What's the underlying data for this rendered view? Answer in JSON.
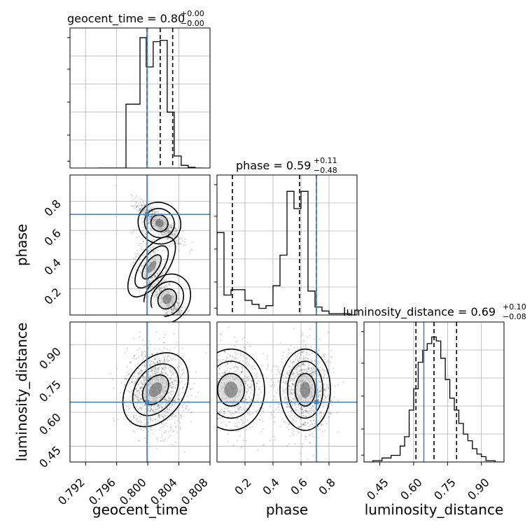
{
  "colors": {
    "truth": "#4682b4",
    "line": "#000000",
    "grid": "#b0b0b0",
    "scatter": "#666666"
  },
  "chart_data": {
    "type": "corner",
    "parameters": [
      "geocent_time",
      "phase",
      "luminosity_distance"
    ],
    "grid": true,
    "panels": [
      {
        "id": "hist-geocent_time",
        "type": "histogram",
        "param": "geocent_time",
        "title": {
          "text": "geocent_time = 0.80",
          "sup": "+0.00",
          "sub": "−0.00"
        },
        "xlim": [
          0.79,
          0.808
        ],
        "bins": [
          0.7936,
          0.7954,
          0.7972,
          0.799,
          0.7998,
          0.8007,
          0.8016,
          0.8025,
          0.8034,
          0.8043,
          0.8052,
          0.8061,
          0.807
        ],
        "values": [
          0,
          0,
          0.48,
          0.98,
          0.76,
          0.95,
          0.96,
          0.42,
          0.09,
          0.02,
          0.005,
          0
        ],
        "ymax": 1.0,
        "quantiles": [
          0.7999,
          0.8016,
          0.8032
        ],
        "truth": 0.7999
      },
      {
        "id": "scatter-geocent_time-phase",
        "type": "2d",
        "x": "geocent_time",
        "y": "phase",
        "xlim": [
          0.79,
          0.808
        ],
        "ylim": [
          0.02,
          0.98
        ],
        "truth": [
          0.7999,
          0.71
        ],
        "clusters": [
          {
            "cx": 0.8015,
            "cy": 0.65,
            "sx": 0.0014,
            "sy": 0.07,
            "rho": -0.85,
            "n": 650
          },
          {
            "cx": 0.8005,
            "cy": 0.35,
            "sx": 0.001,
            "sy": 0.12,
            "rho": -0.4,
            "n": 300
          },
          {
            "cx": 0.8025,
            "cy": 0.13,
            "sx": 0.0014,
            "sy": 0.09,
            "rho": -0.85,
            "n": 500
          }
        ],
        "xticks": [
          0.792,
          0.796,
          0.8,
          0.804,
          0.808
        ],
        "yticks": [
          0.2,
          0.4,
          0.6,
          0.8
        ]
      },
      {
        "id": "hist-phase",
        "type": "histogram",
        "param": "phase",
        "title": {
          "text": "phase = 0.59",
          "sup": "+0.11",
          "sub": "−0.48"
        },
        "xlim": [
          0.0,
          1.0
        ],
        "bins": [
          0.0,
          0.05,
          0.1,
          0.15,
          0.2,
          0.25,
          0.3,
          0.35,
          0.4,
          0.45,
          0.5,
          0.55,
          0.6,
          0.65,
          0.7,
          0.75,
          0.8,
          0.85,
          0.9,
          0.95,
          1.0
        ],
        "values": [
          0.62,
          0.15,
          0.19,
          0.19,
          0.11,
          0.08,
          0.05,
          0.07,
          0.22,
          0.45,
          0.93,
          0.8,
          0.93,
          0.18,
          0.06,
          0.03,
          0.01,
          0.01,
          0.01,
          0.0
        ],
        "ymax": 1.0,
        "quantiles": [
          0.11,
          0.59,
          0.71
        ],
        "truth": 0.71
      },
      {
        "id": "scatter-geocent_time-luminosity_distance",
        "type": "2d",
        "x": "geocent_time",
        "y": "luminosity_distance",
        "xlim": [
          0.79,
          0.808
        ],
        "ylim": [
          0.38,
          1.0
        ],
        "truth": [
          0.7999,
          0.645
        ],
        "clusters": [
          {
            "cx": 0.801,
            "cy": 0.7,
            "sx": 0.0018,
            "sy": 0.09,
            "rho": -0.1,
            "n": 1300
          }
        ],
        "xticks": [
          0.792,
          0.796,
          0.8,
          0.804,
          0.808
        ],
        "yticks": [
          0.45,
          0.6,
          0.75,
          0.9
        ]
      },
      {
        "id": "scatter-phase-luminosity_distance",
        "type": "2d",
        "x": "phase",
        "y": "luminosity_distance",
        "xlim": [
          0.0,
          1.0
        ],
        "ylim": [
          0.38,
          1.0
        ],
        "truth": [
          0.71,
          0.645
        ],
        "clusters": [
          {
            "cx": 0.63,
            "cy": 0.7,
            "sx": 0.09,
            "sy": 0.09,
            "rho": 0.0,
            "n": 1100
          },
          {
            "cx": 0.1,
            "cy": 0.7,
            "sx": 0.12,
            "sy": 0.09,
            "rho": 0.0,
            "n": 700
          }
        ],
        "xticks": [
          0.2,
          0.4,
          0.6,
          0.8
        ],
        "yticks": []
      },
      {
        "id": "hist-luminosity_distance",
        "type": "histogram",
        "param": "luminosity_distance",
        "title": {
          "text": "luminosity_distance = 0.69",
          "sup": "+0.10",
          "sub": "−0.08"
        },
        "xlim": [
          0.38,
          1.0
        ],
        "bins": [
          0.38,
          0.42,
          0.46,
          0.5,
          0.54,
          0.56,
          0.58,
          0.6,
          0.62,
          0.64,
          0.66,
          0.68,
          0.7,
          0.72,
          0.74,
          0.76,
          0.78,
          0.8,
          0.82,
          0.84,
          0.86,
          0.88,
          0.9,
          0.92,
          0.94,
          0.96,
          1.0
        ],
        "values": [
          0.0,
          0.01,
          0.03,
          0.05,
          0.12,
          0.19,
          0.39,
          0.55,
          0.75,
          0.84,
          0.89,
          0.94,
          0.91,
          0.78,
          0.62,
          0.48,
          0.39,
          0.29,
          0.21,
          0.16,
          0.1,
          0.06,
          0.04,
          0.01,
          0.01,
          0.0
        ],
        "ymax": 1.0,
        "quantiles": [
          0.61,
          0.69,
          0.79
        ],
        "truth": 0.645,
        "xticks": [
          0.45,
          0.6,
          0.75,
          0.9
        ]
      }
    ],
    "axis_labels": {
      "geocent_time": "geocent_time",
      "phase": "phase",
      "luminosity_distance": "luminosity_distance"
    },
    "tick_labels": {
      "geocent_time": [
        "0.792",
        "0.796",
        "0.800",
        "0.804",
        "0.808"
      ],
      "phase": [
        "0.2",
        "0.4",
        "0.6",
        "0.8"
      ],
      "luminosity_distance": [
        "0.45",
        "0.60",
        "0.75",
        "0.90"
      ]
    }
  }
}
